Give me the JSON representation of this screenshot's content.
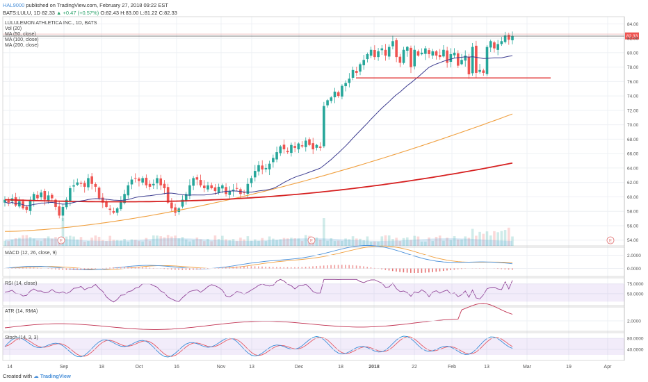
{
  "header": {
    "user": "HAL9000",
    "published": "published on TradingView.com, February 27, 2018 09:22 EST",
    "symbol_line_prefix": "BATS:LULU, 1D",
    "price": "82.33",
    "change": "+0.47 (+0.57%)",
    "ohlc": "O:82.43 H:83.00 L:81.22 C:82.33"
  },
  "legend": {
    "title": "LULULEMON ATHLETICA INC., 1D, BATS",
    "vol": "Vol (20)",
    "ma50": "MA (50, close)",
    "ma100": "MA (100, close)",
    "ma200": "MA (200, close)"
  },
  "indicators": {
    "macd": "MACD (12, 26, close, 9)",
    "rsi": "RSI (14, close)",
    "atr": "ATR (14, RMA)",
    "stoch": "Stoch (14, 3, 3)"
  },
  "footer": {
    "created": "Created with",
    "brand": "TradingView"
  },
  "colors": {
    "up": "#26a69a",
    "down": "#ef5350",
    "ma50": "#3b3b8f",
    "ma100": "#f0a040",
    "ma200": "#d62020",
    "support": "#e03030"
  },
  "chart_data": [
    {
      "type": "candlestick",
      "title": "LULULEMON ATHLETICA INC., 1D, BATS",
      "x_tick_labels": [
        "14",
        "Sep",
        "18",
        "Oct",
        "16",
        "Nov",
        "13",
        "Dec",
        "18",
        "2018",
        "22",
        "Feb",
        "13",
        "Mar",
        "19",
        "Apr"
      ],
      "y_tick_labels": [
        "54.00",
        "56.00",
        "58.00",
        "60.00",
        "62.00",
        "64.00",
        "66.00",
        "68.00",
        "70.00",
        "72.00",
        "74.00",
        "76.00",
        "78.00",
        "80.00",
        "82.00",
        "84.00"
      ],
      "ylim": [
        53.2,
        85
      ],
      "last_price_label": "82.33",
      "close_series": [
        59.6,
        59.2,
        59.8,
        58.8,
        59.4,
        58.4,
        58.2,
        59.6,
        60.4,
        59.8,
        60.6,
        59.6,
        60.2,
        59.8,
        58.6,
        57.4,
        58.6,
        59.6,
        61.2,
        61.6,
        62.0,
        61.8,
        61.4,
        62.6,
        61.8,
        61.4,
        59.8,
        59.2,
        58.6,
        58.2,
        57.8,
        58.4,
        59.4,
        60.4,
        61.6,
        62.4,
        62.6,
        62.2,
        62.6,
        61.6,
        61.4,
        61.8,
        62.6,
        61.6,
        61.2,
        59.2,
        58.4,
        57.8,
        58.4,
        59.6,
        60.4,
        61.6,
        62.6,
        62.4,
        61.6,
        61.2,
        61.6,
        61.2,
        60.8,
        61.4,
        61.6,
        60.4,
        60.8,
        61.0,
        61.2,
        60.4,
        60.6,
        61.8,
        62.6,
        63.6,
        64.4,
        63.8,
        64.0,
        64.6,
        65.4,
        66.2,
        67.0,
        66.6,
        66.2,
        67.2,
        66.8,
        67.4,
        67.0,
        67.8,
        67.2,
        66.6,
        67.2,
        66.8,
        72.6,
        73.4,
        73.8,
        74.6,
        74.0,
        75.4,
        75.8,
        76.4,
        77.6,
        77.2,
        78.4,
        79.0,
        79.8,
        80.4,
        79.4,
        80.2,
        80.6,
        79.6,
        80.8,
        81.6,
        79.4,
        78.6,
        80.4,
        80.8,
        78.0,
        80.4,
        79.6,
        80.0,
        80.6,
        79.8,
        80.2,
        79.6,
        79.4,
        80.4,
        78.6,
        79.8,
        80.0,
        78.2,
        79.0,
        79.6,
        77.0,
        80.8,
        77.2,
        77.6,
        77.2,
        80.8,
        81.6,
        80.6,
        81.2,
        81.6,
        82.4,
        81.8,
        82.33
      ],
      "support_level": 76.5,
      "resistance_level": 82.3,
      "ma50_end": 78.8,
      "ma100_end": 71.5,
      "ma200_end": 64.5
    },
    {
      "type": "line",
      "title": "MACD (12, 26, close, 9)",
      "y_tick_labels": [
        "2.0000",
        "0.0000"
      ],
      "ylim": [
        -1.2,
        3.2
      ]
    },
    {
      "type": "line",
      "title": "RSI (14, close)",
      "y_tick_labels": [
        "75.0000",
        "50.0000"
      ],
      "ylim": [
        20,
        90
      ]
    },
    {
      "type": "line",
      "title": "ATR (14, RMA)",
      "y_tick_labels": [
        "2.0000"
      ],
      "ylim": [
        0.8,
        3.6
      ]
    },
    {
      "type": "line",
      "title": "Stoch (14, 3, 3)",
      "y_tick_labels": [
        "80.0000",
        "40.0000"
      ],
      "ylim": [
        0,
        100
      ]
    }
  ]
}
